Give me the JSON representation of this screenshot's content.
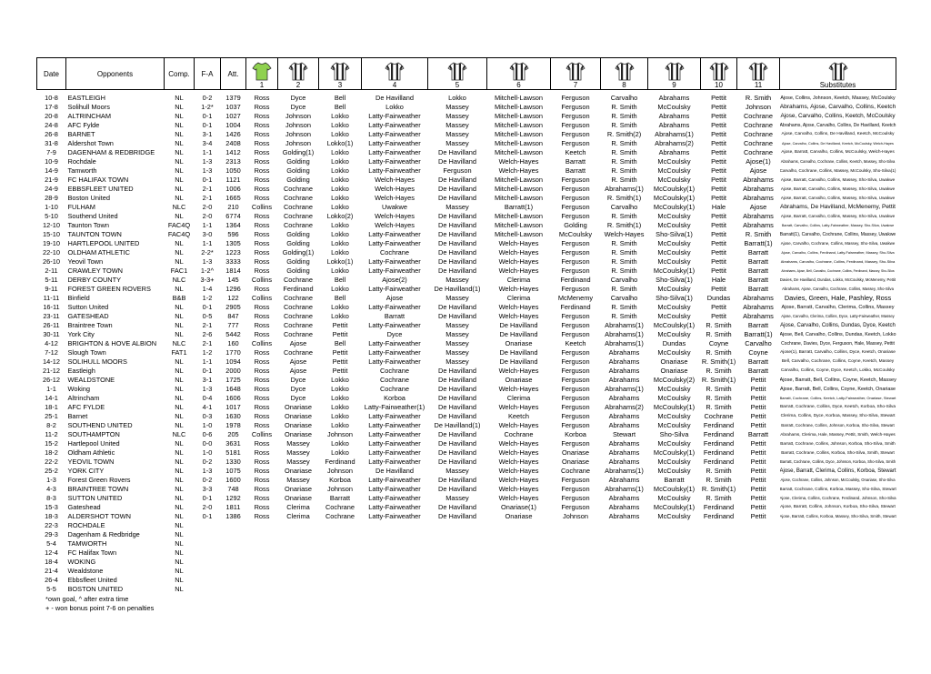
{
  "table": {
    "header": [
      "Date",
      "Opponents",
      "Comp.",
      "F-A",
      "Att.",
      "1",
      "2",
      "3",
      "4",
      "5",
      "6",
      "7",
      "8",
      "9",
      "10",
      "11",
      "Substitutes"
    ],
    "rows": [
      [
        "10-8",
        "EASTLEIGH",
        "NL",
        "0-2",
        "1379",
        "Ross",
        "Dyce",
        "Bell",
        "De Havilland",
        "Lokko",
        "Mitchell-Lawson",
        "Ferguson",
        "Carvalho",
        "Abrahams",
        "Pettit",
        "R. Smith",
        "Ajose, Collins, Johnson, Keetch, Massey, McCoulsky"
      ],
      [
        "17-8",
        "Solihull Moors",
        "NL",
        "1-2*",
        "1037",
        "Ross",
        "Dyce",
        "Bell",
        "Lokko",
        "Massey",
        "Mitchell-Lawson",
        "Ferguson",
        "R. Smith",
        "McCoulsky",
        "Pettit",
        "Johnson",
        "Abrahams, Ajose, Carvalho, Collins, Keetch"
      ],
      [
        "20-8",
        "ALTRINCHAM",
        "NL",
        "0-1",
        "1027",
        "Ross",
        "Johnson",
        "Lokko",
        "Latty-Fairweather",
        "Massey",
        "Mitchell-Lawson",
        "Ferguson",
        "R. Smith",
        "Abrahams",
        "Pettit",
        "Cochrane",
        "Ajose, Carvalho, Collins, Keetch, McCoulsky"
      ],
      [
        "24-8",
        "AFC Fylde",
        "NL",
        "0-1",
        "1004",
        "Ross",
        "Johnson",
        "Lokko",
        "Latty-Fairweather",
        "Massey",
        "Mitchell-Lawson",
        "Ferguson",
        "R. Smith",
        "Abrahams",
        "Pettit",
        "Cochrane",
        "Abrahams, Ajose, Carvalho, Collins, De Havilland, Keetch"
      ],
      [
        "26-8",
        "BARNET",
        "NL",
        "3-1",
        "1426",
        "Ross",
        "Johnson",
        "Lokko",
        "Latty-Fairweather",
        "Massey",
        "Mitchell-Lawson",
        "Ferguson",
        "R. Smith(2)",
        "Abrahams(1)",
        "Pettit",
        "Cochrane",
        "Ajose, Carvalho, Collins, De Havilland, Keetch, McCoulsky"
      ],
      [
        "31-8",
        "Aldershot Town",
        "NL",
        "3-4",
        "2408",
        "Ross",
        "Johnson",
        "Lokko(1)",
        "Latty-Fairweather",
        "Massey",
        "Mitchell-Lawson",
        "Ferguson",
        "R. Smith",
        "Abrahams(2)",
        "Pettit",
        "Cochrane",
        "Ajose, Carvalho, Collins, De Havilland, Keetch, McCoulsky, Welch-Hayes"
      ],
      [
        "7-9",
        "DAGENHAM & REDBRIDGE",
        "NL",
        "1-1",
        "1412",
        "Ross",
        "Golding(1)",
        "Lokko",
        "Latty-Fairweather",
        "De Havilland",
        "Mitchell-Lawson",
        "Keetch",
        "R. Smith",
        "Abrahams",
        "Pettit",
        "Cochrane",
        "Ajose, Barratt, Carvalho, Collins, McCoulsky, Welch-Hayes"
      ],
      [
        "10-9",
        "Rochdale",
        "NL",
        "1-3",
        "2313",
        "Ross",
        "Golding",
        "Lokko",
        "Latty-Fairweather",
        "De Havilland",
        "Welch-Hayes",
        "Barratt",
        "R. Smith",
        "McCoulsky",
        "Pettit",
        "Ajose(1)",
        "Abrahams, Carvalho, Cochrane, Collins, Keetch, Massey, Sho-Silva"
      ],
      [
        "14-9",
        "Tamworth",
        "NL",
        "1-3",
        "1050",
        "Ross",
        "Golding",
        "Lokko",
        "Latty-Fairweather",
        "Ferguson",
        "Welch-Hayes",
        "Barratt",
        "R. Smith",
        "McCoulsky",
        "Pettit",
        "Ajose",
        "Carvalho, Cochrane, Collins, Massey, McCoulsky, Sho-Silva(1)"
      ],
      [
        "21-9",
        "FC HALIFAX TOWN",
        "NL",
        "0-1",
        "1121",
        "Ross",
        "Golding",
        "Lokko",
        "Welch-Hayes",
        "De Havilland",
        "Mitchell-Lawson",
        "Ferguson",
        "R. Smith",
        "McCoulsky",
        "Pettit",
        "Abrahams",
        "Ajose, Barratt, Carvalho, Collins, Massey, Sho-Silva, Uwakwe"
      ],
      [
        "24-9",
        "EBBSFLEET UNITED",
        "NL",
        "2-1",
        "1006",
        "Ross",
        "Cochrane",
        "Lokko",
        "Welch-Hayes",
        "De Havilland",
        "Mitchell-Lawson",
        "Ferguson",
        "Abrahams(1)",
        "McCoulsky(1)",
        "Pettit",
        "Abrahams",
        "Ajose, Barratt, Carvalho, Collins, Massey, Sho-Silva, Uwakwe"
      ],
      [
        "28-9",
        "Boston United",
        "NL",
        "2-1",
        "1665",
        "Ross",
        "Cochrane",
        "Lokko",
        "Welch-Hayes",
        "De Havilland",
        "Mitchell-Lawson",
        "Ferguson",
        "R. Smith(1)",
        "McCoulsky(1)",
        "Pettit",
        "Abrahams",
        "Ajose, Barratt, Carvalho, Collins, Massey, Sho-Silva, Uwakwe"
      ],
      [
        "1-10",
        "FULHAM",
        "NLC",
        "2-0",
        "210",
        "Collins",
        "Cochrane",
        "Lokko",
        "Uwakwe",
        "Massey",
        "Barratt(1)",
        "Ferguson",
        "Carvalho",
        "McCoulsky(1)",
        "Hale",
        "Ajose",
        "Abrahams, De Havilland, McMenemy, Pettit"
      ],
      [
        "5-10",
        "Southend United",
        "NL",
        "2-0",
        "6774",
        "Ross",
        "Cochrane",
        "Lokko(2)",
        "Welch-Hayes",
        "De Havilland",
        "Mitchell-Lawson",
        "Ferguson",
        "R. Smith",
        "McCoulsky",
        "Pettit",
        "Abrahams",
        "Ajose, Barratt, Carvalho, Collins, Massey, Sho-Silva, Uwakwe"
      ],
      [
        "12-10",
        "Taunton Town",
        "FAC4Q",
        "1-1",
        "1364",
        "Ross",
        "Cochrane",
        "Lokko",
        "Welch-Hayes",
        "De Havilland",
        "Mitchell-Lawson",
        "Golding",
        "R. Smith(1)",
        "McCoulsky",
        "Pettit",
        "Abrahams",
        "Barratt, Carvalho, Collins, Latty-Fairweather, Massey, Sho-Silva, Uwakwe"
      ],
      [
        "15-10",
        "TAUNTON TOWN",
        "FAC4Q",
        "3-0",
        "596",
        "Ross",
        "Golding",
        "Lokko",
        "Latty-Fairweather",
        "De Havilland",
        "Mitchell-Lawson",
        "McCoulsky",
        "Welch-Hayes",
        "Sho-Silva(1)",
        "Pettit",
        "R. Smith",
        "Barratt(1), Carvalho, Cochrane, Collins, Massey, Uwakwe"
      ],
      [
        "19-10",
        "HARTLEPOOL UNITED",
        "NL",
        "1-1",
        "1305",
        "Ross",
        "Golding",
        "Lokko",
        "Latty-Fairweather",
        "De Havilland",
        "Welch-Hayes",
        "Ferguson",
        "R. Smith",
        "McCoulsky",
        "Pettit",
        "Barratt(1)",
        "Ajose, Carvalho, Cochrane, Collins, Massey, Sho-Silva, Uwakwe"
      ],
      [
        "22-10",
        "OLDHAM ATHLETIC",
        "NL",
        "2-2*",
        "1223",
        "Ross",
        "Golding(1)",
        "Lokko",
        "Cochrane",
        "De Havilland",
        "Welch-Hayes",
        "Ferguson",
        "R. Smith",
        "McCoulsky",
        "Pettit",
        "Barratt",
        "Ajose, Carvalho, Collins, Ferdinand, Latty-Fairweather, Massey, Sho-Silva"
      ],
      [
        "26-10",
        "Yeovil Town",
        "NL",
        "1-3",
        "3333",
        "Ross",
        "Golding",
        "Lokko(1)",
        "Latty-Fairweather",
        "De Havilland",
        "Welch-Hayes",
        "Ferguson",
        "R. Smith",
        "McCoulsky",
        "Pettit",
        "Barratt",
        "Abrahams, Carvalho, Cochrane, Collins, Ferdinand, Massey, Sho-Silva"
      ],
      [
        "2-11",
        "CRAWLEY TOWN",
        "FAC1",
        "1-2^",
        "1814",
        "Ross",
        "Golding",
        "Lokko",
        "Latty-Fairweather",
        "De Havilland",
        "Welch-Hayes",
        "Ferguson",
        "R. Smith",
        "McCoulsky(1)",
        "Pettit",
        "Barratt",
        "Abrahams, Ajose, Bell, Carvalho, Cochrane, Collins, Ferdinand, Massey, Sho-Silva"
      ],
      [
        "5-11",
        "DERBY COUNTY",
        "NLC",
        "3-3+",
        "145",
        "Collins",
        "Cochrane",
        "Bell",
        "Ajose(2)",
        "Massey",
        "Clerima",
        "Ferdinand",
        "Carvalho",
        "Sho-Silva(1)",
        "Hale",
        "Barratt",
        "Davies, De Havilland, Dundas, Lokko, McCoulsky, McMenemy, Pettit"
      ],
      [
        "9-11",
        "FOREST GREEN ROVERS",
        "NL",
        "1-4",
        "1296",
        "Ross",
        "Ferdinand",
        "Lokko",
        "Latty-Fairweather",
        "De Havilland(1)",
        "Welch-Hayes",
        "Ferguson",
        "R. Smith",
        "McCoulsky",
        "Pettit",
        "Barratt",
        "Abrahams, Ajose, Carvalho, Cochrane, Collins, Massey, Sho-Silva"
      ],
      [
        "11-11",
        "Binfield",
        "B&B",
        "1-2",
        "122",
        "Collins",
        "Cochrane",
        "Bell",
        "Ajose",
        "Massey",
        "Clerima",
        "McMenemy",
        "Carvalho",
        "Sho-Silva(1)",
        "Dundas",
        "Abrahams",
        "Davies, Green, Hale, Pashley, Ross"
      ],
      [
        "16-11",
        "Sutton United",
        "NL",
        "0-1",
        "2905",
        "Ross",
        "Cochrane",
        "Lokko",
        "Latty-Fairweather",
        "De Havilland",
        "Welch-Hayes",
        "Ferdinand",
        "R. Smith",
        "McCoulsky",
        "Pettit",
        "Abrahams",
        "Ajose, Barratt, Carvalho, Clerima, Collins, Massey"
      ],
      [
        "23-11",
        "GATESHEAD",
        "NL",
        "0-5",
        "847",
        "Ross",
        "Cochrane",
        "Lokko",
        "Barratt",
        "De Havilland",
        "Welch-Hayes",
        "Ferguson",
        "R. Smith",
        "McCoulsky",
        "Pettit",
        "Abrahams",
        "Ajose, Carvalho, Clerima, Collins, Dyce, Latty-Fairweather, Massey"
      ],
      [
        "26-11",
        "Braintree Town",
        "NL",
        "2-1",
        "777",
        "Ross",
        "Cochrane",
        "Pettit",
        "Latty-Fairweather",
        "Massey",
        "De Havilland",
        "Ferguson",
        "Abrahams(1)",
        "McCoulsky(1)",
        "R. Smith",
        "Barratt",
        "Ajose, Carvalho, Collins, Dundas, Dyce, Keetch"
      ],
      [
        "30-11",
        "York City",
        "NL",
        "2-6",
        "5442",
        "Ross",
        "Cochrane",
        "Pettit",
        "Dyce",
        "Massey",
        "De Havilland",
        "Ferguson",
        "Abrahams(1)",
        "McCoulsky",
        "R. Smith",
        "Barratt(1)",
        "Ajose, Bell, Carvalho, Collins, Dundas, Keetch, Lokko"
      ],
      [
        "4-12",
        "BRIGHTON & HOVE ALBION",
        "NLC",
        "2-1",
        "160",
        "Collins",
        "Ajose",
        "Bell",
        "Latty-Fairweather",
        "Massey",
        "Onariase",
        "Keetch",
        "Abrahams(1)",
        "Dundas",
        "Coyne",
        "Carvalho",
        "Cochrane, Davies, Dyce, Ferguson, Hale, Massey, Pettit"
      ],
      [
        "7-12",
        "Slough Town",
        "FAT1",
        "1-2",
        "1770",
        "Ross",
        "Cochrane",
        "Pettit",
        "Latty-Fairweather",
        "Massey",
        "De Havilland",
        "Ferguson",
        "Abrahams",
        "McCoulsky",
        "R. Smith",
        "Coyne",
        "Ajose(1), Barratt, Carvalho, Collins, Dyce, Keetch, Onariase"
      ],
      [
        "14-12",
        "SOLIHULL MOORS",
        "NL",
        "1-1",
        "1094",
        "Ross",
        "Ajose",
        "Pettit",
        "Latty-Fairweather",
        "Massey",
        "De Havilland",
        "Ferguson",
        "Abrahams",
        "Onariase",
        "R. Smith(1)",
        "Barratt",
        "Bell, Carvalho, Cochrane, Collins, Coyne, Keetch, Massey"
      ],
      [
        "21-12",
        "Eastleigh",
        "NL",
        "0-1",
        "2000",
        "Ross",
        "Ajose",
        "Pettit",
        "Cochrane",
        "De Havilland",
        "Welch-Hayes",
        "Ferguson",
        "Abrahams",
        "Onariase",
        "R. Smith",
        "Barratt",
        "Carvalho, Collins, Coyne, Dyce, Keetch, Lokko, McCoulsky"
      ],
      [
        "26-12",
        "WEALDSTONE",
        "NL",
        "3-1",
        "1725",
        "Ross",
        "Dyce",
        "Lokko",
        "Cochrane",
        "De Havilland",
        "Onariase",
        "Ferguson",
        "Abrahams",
        "McCoulsky(2)",
        "R. Smith(1)",
        "Pettit",
        "Ajose, Barratt, Bell, Collins, Coyne, Keetch, Massey"
      ],
      [
        "1-1",
        "Woking",
        "NL",
        "1-3",
        "1648",
        "Ross",
        "Dyce",
        "Lokko",
        "Cochrane",
        "De Havilland",
        "Welch-Hayes",
        "Ferguson",
        "Abrahams(1)",
        "McCoulsky",
        "R. Smith",
        "Pettit",
        "Ajose, Barratt, Bell, Collins, Coyne, Keetch, Onariase"
      ],
      [
        "14-1",
        "Altrincham",
        "NL",
        "0-4",
        "1606",
        "Ross",
        "Dyce",
        "Lokko",
        "Korboa",
        "De Havilland",
        "Clerima",
        "Ferguson",
        "Abrahams",
        "McCoulsky",
        "R. Smith",
        "Pettit",
        "Barratt, Cochrane, Collins, Keetch, Latty-Fairweather, Onariase, Stewart"
      ],
      [
        "18-1",
        "AFC FYLDE",
        "NL",
        "4-1",
        "1017",
        "Ross",
        "Onariase",
        "Lokko",
        "Latty-Fairweather(1)",
        "De Havilland",
        "Welch-Hayes",
        "Ferguson",
        "Abrahams(2)",
        "McCoulsky(1)",
        "R. Smith",
        "Pettit",
        "Barratt, Cochrane, Collins, Dyce, Keetch, Korboa, Sho-Silva"
      ],
      [
        "25-1",
        "Barnet",
        "NL",
        "0-3",
        "1630",
        "Ross",
        "Onariase",
        "Lokko",
        "Latty-Fairweather",
        "De Havilland",
        "Keetch",
        "Ferguson",
        "Abrahams",
        "McCoulsky",
        "Cochrane",
        "Pettit",
        "Clerima, Collins, Dyce, Korboa, Massey, Sho-Silva, Stewart"
      ],
      [
        "8-2",
        "SOUTHEND UNITED",
        "NL",
        "1-0",
        "1978",
        "Ross",
        "Onariase",
        "Lokko",
        "Latty-Fairweather",
        "De Havilland(1)",
        "Welch-Hayes",
        "Ferguson",
        "Abrahams",
        "McCoulsky",
        "Ferdinand",
        "Pettit",
        "Barratt, Cochrane, Collins, Johnson, Korboa, Sho-Silva, Stewart"
      ],
      [
        "11-2",
        "SOUTHAMPTON",
        "NLC",
        "0-6",
        "205",
        "Collins",
        "Onariase",
        "Johnson",
        "Latty-Fairweather",
        "De Havilland",
        "Cochrane",
        "Korboa",
        "Stewart",
        "Sho-Silva",
        "Ferdinand",
        "Barratt",
        "Abrahams, Clerima, Hale, Massey, Pettit, Smith, Welch-Hayes"
      ],
      [
        "15-2",
        "Hartlepool United",
        "NL",
        "0-0",
        "3631",
        "Ross",
        "Massey",
        "Lokko",
        "Latty-Fairweather",
        "De Havilland",
        "Welch-Hayes",
        "Ferguson",
        "Abrahams",
        "McCoulsky",
        "Ferdinand",
        "Pettit",
        "Barratt, Cochrane, Collins, Johnson, Korboa, Sho-Silva, Smith"
      ],
      [
        "18-2",
        "Oldham Athletic",
        "NL",
        "1-0",
        "5181",
        "Ross",
        "Massey",
        "Lokko",
        "Latty-Fairweather",
        "De Havilland",
        "Welch-Hayes",
        "Onariase",
        "Abrahams",
        "McCoulsky(1)",
        "Ferdinand",
        "Pettit",
        "Barratt, Cochrane, Collins, Korboa, Sho-Silva, Smith, Stewart"
      ],
      [
        "22-2",
        "YEOVIL TOWN",
        "NL",
        "0-2",
        "1330",
        "Ross",
        "Massey",
        "Ferdinand",
        "Latty-Fairweather",
        "De Havilland",
        "Welch-Hayes",
        "Onariase",
        "Abrahams",
        "McCoulsky",
        "Ferdinand",
        "Pettit",
        "Barratt, Cochrane, Collins, Dyce, Johnson, Korboa, Sho-Silva, Smith"
      ],
      [
        "25-2",
        "YORK CITY",
        "NL",
        "1-3",
        "1075",
        "Ross",
        "Onariase",
        "Johnson",
        "De Havilland",
        "Massey",
        "Welch-Hayes",
        "Cochrane",
        "Abrahams(1)",
        "McCoulsky",
        "R. Smith",
        "Pettit",
        "Ajose, Barratt, Clerima, Collins, Korboa, Stewart"
      ],
      [
        "1-3",
        "Forest Green Rovers",
        "NL",
        "0-2",
        "1600",
        "Ross",
        "Massey",
        "Korboa",
        "Latty-Fairweather",
        "De Havilland",
        "Welch-Hayes",
        "Ferguson",
        "Abrahams",
        "Barratt",
        "R. Smith",
        "Pettit",
        "Ajose, Cochrane, Collins, Johnson, McCoulsky, Onariase, Sho-Silva"
      ],
      [
        "4-3",
        "BRAINTREE TOWN",
        "NL",
        "3-3",
        "748",
        "Ross",
        "Onariase",
        "Johnson",
        "Latty-Fairweather",
        "De Havilland",
        "Welch-Hayes",
        "Ferguson",
        "Abrahams(1)",
        "McCoulsky(1)",
        "R. Smith(1)",
        "Pettit",
        "Barratt, Cochrane, Collins, Korboa, Massey, Sho-Silva, Stewart"
      ],
      [
        "8-3",
        "SUTTON UNITED",
        "NL",
        "0-1",
        "1292",
        "Ross",
        "Onariase",
        "Barratt",
        "Latty-Fairweather",
        "Massey",
        "Welch-Hayes",
        "Ferguson",
        "Abrahams",
        "McCoulsky",
        "R. Smith",
        "Pettit",
        "Ajose, Clerima, Collins, Cochrane, Ferdinand, Johnson, Sho-Silva"
      ],
      [
        "15-3",
        "Gateshead",
        "NL",
        "2-0",
        "1811",
        "Ross",
        "Clerima",
        "Cochrane",
        "Latty-Fairweather",
        "De Havilland",
        "Onariase(1)",
        "Ferguson",
        "Abrahams",
        "McCoulsky(1)",
        "Ferdinand",
        "Pettit",
        "Ajose, Barratt, Collins, Johnson, Korboa, Sho-Silva, Stewart"
      ],
      [
        "18-3",
        "ALDERSHOT TOWN",
        "NL",
        "0-1",
        "1386",
        "Ross",
        "Clerima",
        "Cochrane",
        "Latty-Fairweather",
        "De Havilland",
        "Onariase",
        "Johnson",
        "Abrahams",
        "McCoulsky",
        "Ferdinand",
        "Pettit",
        "Ajose, Barratt, Collins, Korboa, Massey, Sho-Silva, Smith, Stewart"
      ],
      [
        "22-3",
        "ROCHDALE",
        "NL"
      ],
      [
        "29-3",
        "Dagenham & Redbridge",
        "NL"
      ],
      [
        "5-4",
        "TAMWORTH",
        "NL"
      ],
      [
        "12-4",
        "FC Halifax Town",
        "NL"
      ],
      [
        "18-4",
        "WOKING",
        "NL"
      ],
      [
        "21-4",
        "Wealdstone",
        "NL"
      ],
      [
        "26-4",
        "Ebbsfleet United",
        "NL"
      ],
      [
        "5-5",
        "BOSTON UNITED",
        "NL"
      ]
    ]
  },
  "notes": [
    "*own goal, ^ after extra time",
    "+ - won bonus point 7-6 on penalties"
  ]
}
